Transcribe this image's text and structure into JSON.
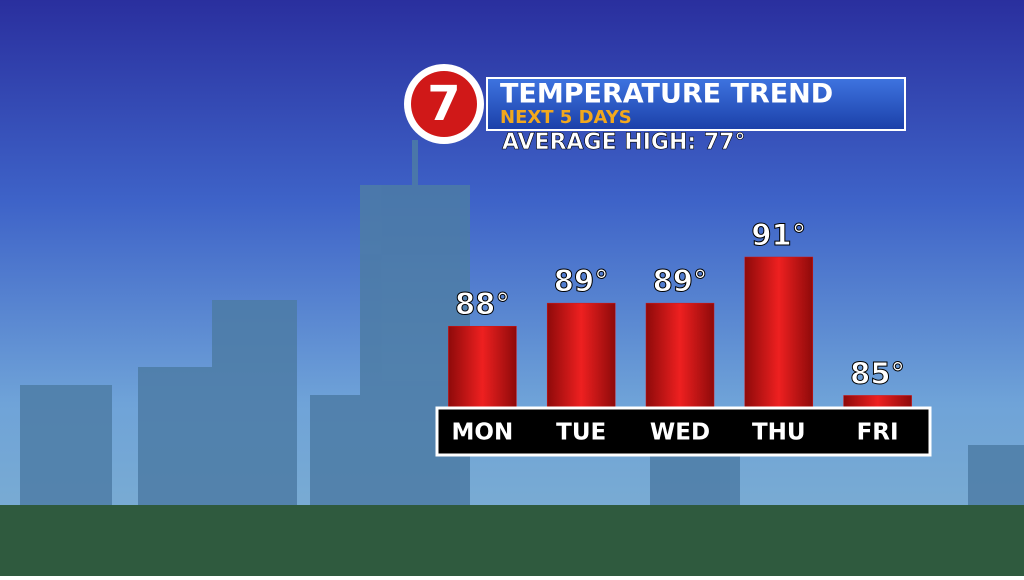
{
  "chart_data": {
    "type": "bar",
    "logo": "7",
    "title": "TEMPERATURE TREND",
    "subtitle": "NEXT 5 DAYS",
    "annotation": "AVERAGE HIGH: 77°",
    "categories": [
      "MON",
      "TUE",
      "WED",
      "THU",
      "FRI"
    ],
    "values": [
      88,
      89,
      89,
      91,
      85
    ],
    "value_labels": [
      "88°",
      "89°",
      "89°",
      "91°",
      "85°"
    ],
    "color": "#d41414",
    "ylim": [
      84.5,
      91
    ]
  }
}
